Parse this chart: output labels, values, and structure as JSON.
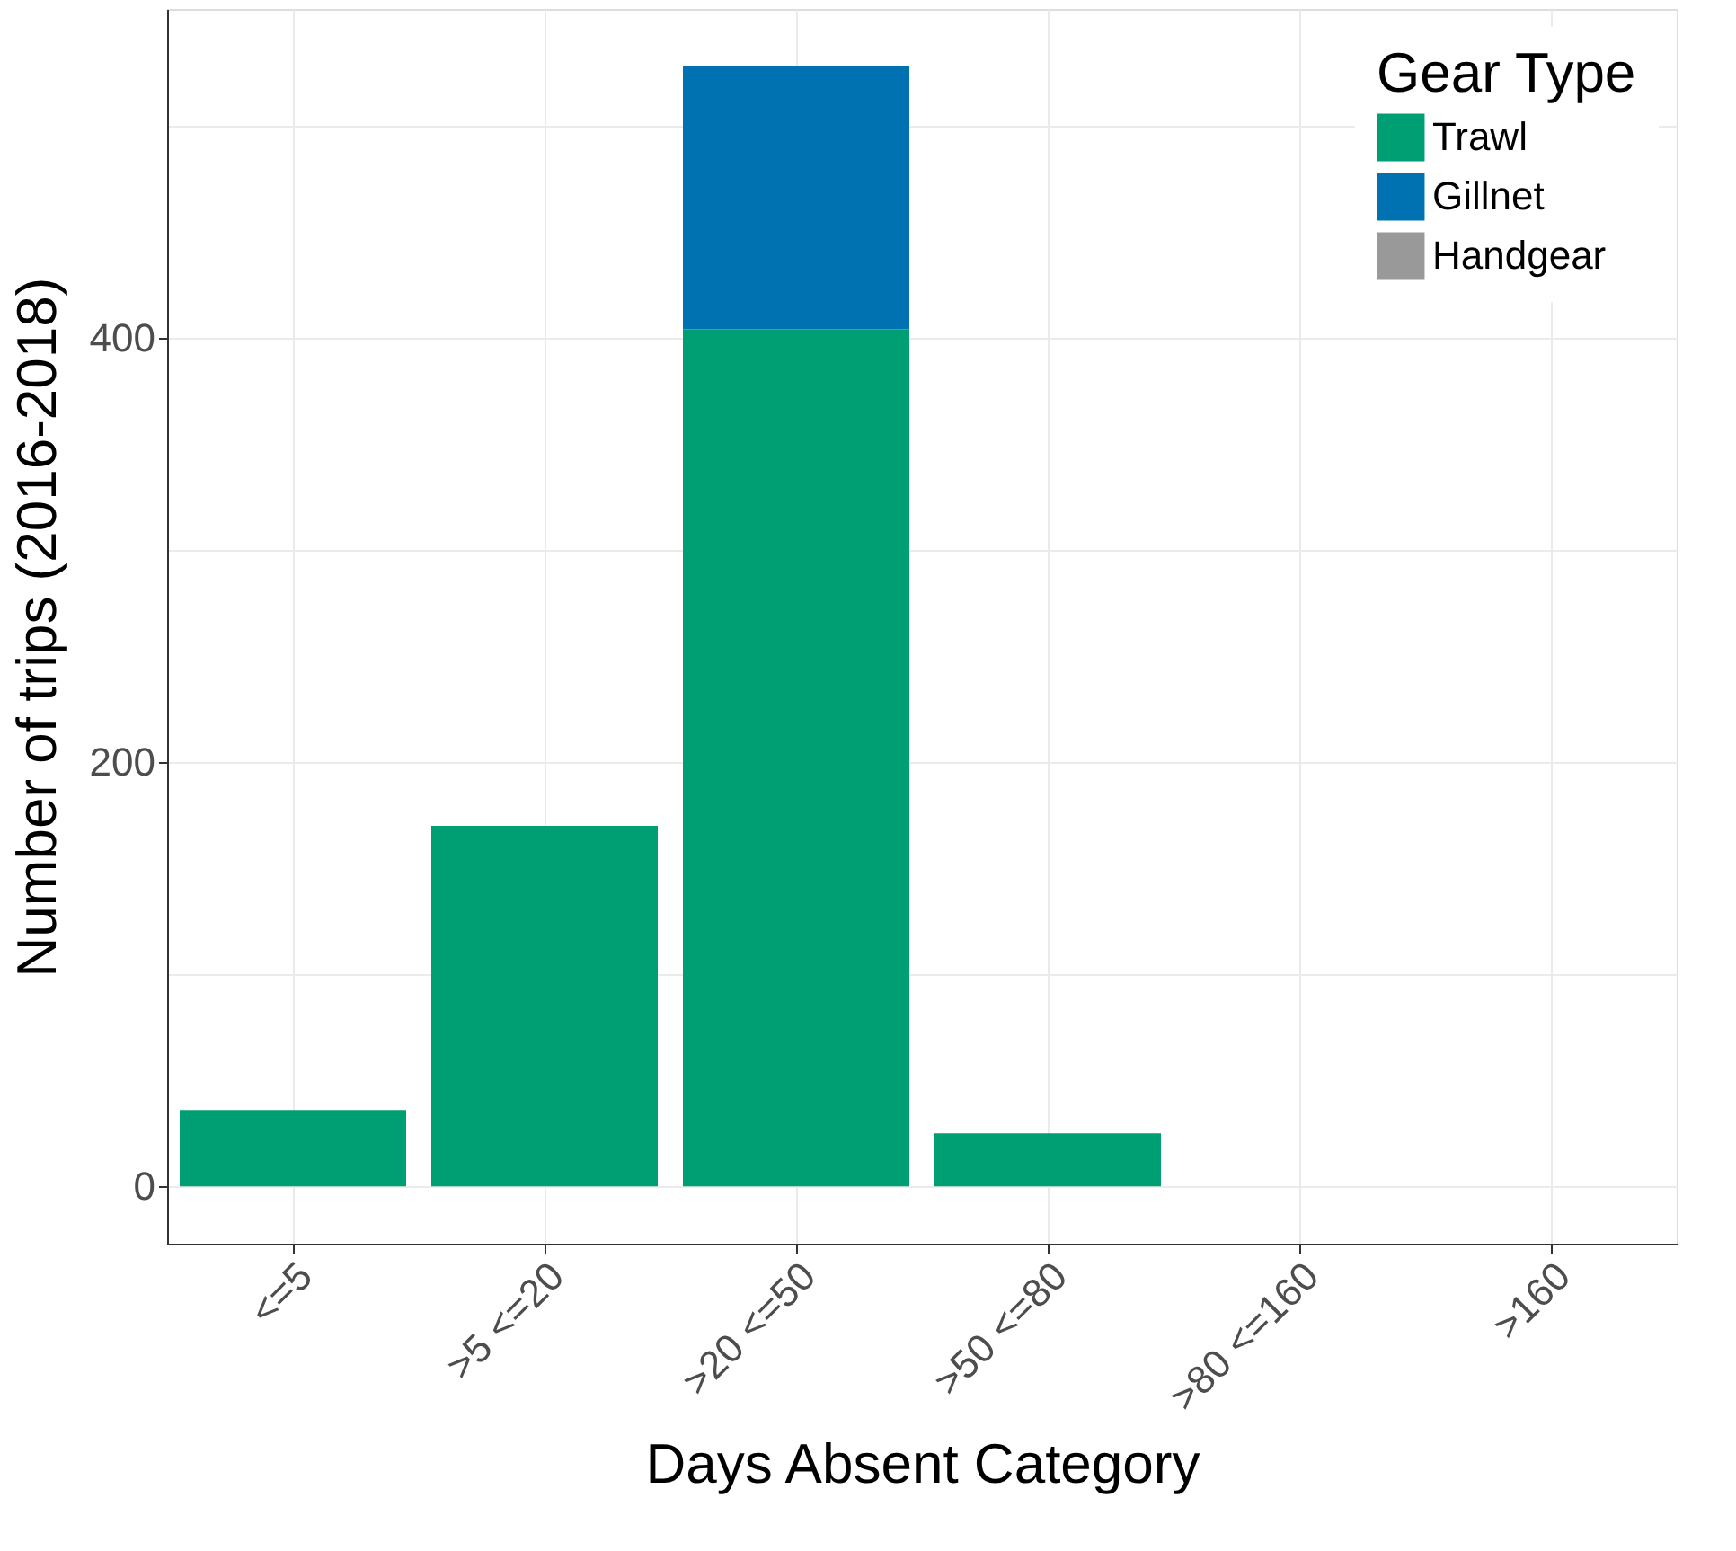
{
  "chart_data": {
    "type": "bar",
    "stacked": true,
    "xlabel": "Days Absent Category",
    "ylabel": "Number of trips (2016-2018)",
    "legend_title": "Gear Type",
    "categories": [
      "<=5",
      ">5 <=20",
      ">20 <=50",
      ">50 <=80",
      ">80 <=160",
      ">160"
    ],
    "series": [
      {
        "name": "Trawl",
        "color": "#009e73",
        "values": [
          36,
          170,
          404,
          25,
          0,
          0
        ]
      },
      {
        "name": "Gillnet",
        "color": "#0072b2",
        "values": [
          0,
          0,
          124,
          0,
          0,
          0
        ]
      },
      {
        "name": "Handgear",
        "color": "#999999",
        "values": [
          0,
          0,
          0,
          0,
          0,
          0
        ]
      }
    ],
    "ylim": [
      -27,
      555
    ],
    "yticks": [
      0,
      {
        "value": 100,
        "label": null
      },
      200,
      {
        "value": 300,
        "label": null
      },
      400,
      {
        "value": 500,
        "label": null
      }
    ],
    "grid": true,
    "legend": "top right"
  }
}
